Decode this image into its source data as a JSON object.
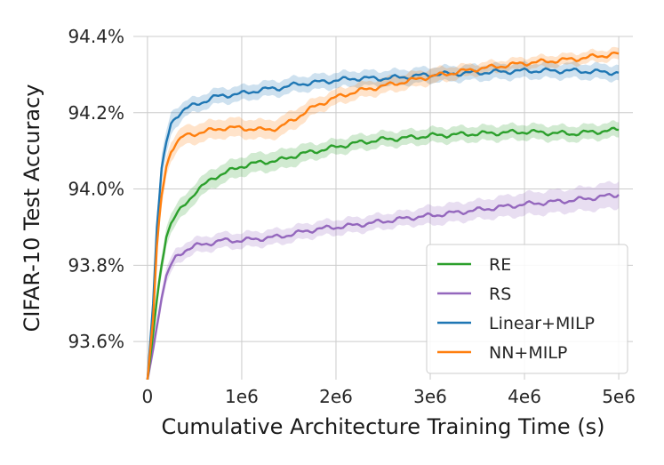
{
  "chart_data": {
    "type": "line",
    "title": "",
    "xlabel": "Cumulative Architecture Training Time (s)",
    "ylabel": "CIFAR-10 Test Accuracy",
    "xlim": [
      -150000,
      5150000
    ],
    "ylim": [
      93.5,
      94.4
    ],
    "xticks": [
      0,
      1000000,
      2000000,
      3000000,
      4000000,
      5000000
    ],
    "xtick_labels": [
      "0",
      "1e6",
      "2e6",
      "3e6",
      "4e6",
      "5e6"
    ],
    "yticks": [
      93.6,
      93.8,
      94.0,
      94.2,
      94.4
    ],
    "ytick_labels": [
      "93.6%",
      "93.8%",
      "94.0%",
      "94.2%",
      "94.4%"
    ],
    "grid": true,
    "legend_position": "lower-right",
    "series": [
      {
        "name": "RE",
        "color": "#2ca02c",
        "x": [
          0,
          60000,
          100000,
          150000,
          200000,
          250000,
          300000,
          400000,
          500000,
          600000,
          700000,
          800000,
          1000000,
          1200000,
          1400000,
          1600000,
          1800000,
          2000000,
          2200000,
          2500000,
          2800000,
          3000000,
          3500000,
          4000000,
          4500000,
          5000000
        ],
        "y": [
          93.5,
          93.62,
          93.71,
          93.8,
          93.88,
          93.91,
          93.93,
          93.96,
          93.99,
          94.01,
          94.03,
          94.04,
          94.06,
          94.07,
          94.075,
          94.09,
          94.1,
          94.11,
          94.12,
          94.13,
          94.135,
          94.14,
          94.145,
          94.15,
          94.145,
          94.155
        ],
        "band": [
          0.025,
          0.025,
          0.025,
          0.025,
          0.025,
          0.025,
          0.025,
          0.025,
          0.025,
          0.025,
          0.025,
          0.025,
          0.025,
          0.025,
          0.025,
          0.025,
          0.02,
          0.02,
          0.02,
          0.02,
          0.02,
          0.02,
          0.02,
          0.02,
          0.02,
          0.02
        ]
      },
      {
        "name": "RS",
        "color": "#9467bd",
        "x": [
          0,
          60000,
          100000,
          150000,
          200000,
          250000,
          300000,
          400000,
          500000,
          600000,
          700000,
          800000,
          1000000,
          1200000,
          1400000,
          1600000,
          1800000,
          2000000,
          2200000,
          2500000,
          2800000,
          3000000,
          3500000,
          4000000,
          4500000,
          5000000
        ],
        "y": [
          93.5,
          93.58,
          93.64,
          93.72,
          93.77,
          93.8,
          93.82,
          93.84,
          93.85,
          93.855,
          93.86,
          93.865,
          93.865,
          93.87,
          93.875,
          93.885,
          93.895,
          93.9,
          93.905,
          93.915,
          93.925,
          93.93,
          93.945,
          93.96,
          93.97,
          93.985
        ],
        "band": [
          0.02,
          0.02,
          0.02,
          0.02,
          0.02,
          0.02,
          0.02,
          0.02,
          0.02,
          0.02,
          0.02,
          0.02,
          0.02,
          0.02,
          0.02,
          0.02,
          0.02,
          0.02,
          0.02,
          0.02,
          0.02,
          0.025,
          0.025,
          0.03,
          0.03,
          0.035
        ]
      },
      {
        "name": "Linear+MILP",
        "color": "#1f77b4",
        "x": [
          0,
          60000,
          100000,
          150000,
          200000,
          250000,
          300000,
          400000,
          500000,
          600000,
          700000,
          800000,
          1000000,
          1200000,
          1400000,
          1600000,
          1800000,
          2000000,
          2200000,
          2500000,
          2800000,
          3000000,
          3500000,
          4000000,
          4500000,
          5000000
        ],
        "y": [
          93.5,
          93.7,
          93.9,
          94.05,
          94.12,
          94.17,
          94.19,
          94.21,
          94.22,
          94.23,
          94.24,
          94.245,
          94.25,
          94.26,
          94.265,
          94.275,
          94.28,
          94.285,
          94.29,
          94.29,
          94.295,
          94.3,
          94.305,
          94.31,
          94.31,
          94.305
        ],
        "band": [
          0.035,
          0.035,
          0.035,
          0.035,
          0.03,
          0.03,
          0.025,
          0.02,
          0.02,
          0.02,
          0.02,
          0.02,
          0.02,
          0.02,
          0.02,
          0.02,
          0.02,
          0.02,
          0.02,
          0.02,
          0.02,
          0.02,
          0.02,
          0.02,
          0.02,
          0.02
        ]
      },
      {
        "name": "NN+MILP",
        "color": "#ff7f0e",
        "x": [
          0,
          60000,
          100000,
          150000,
          200000,
          250000,
          300000,
          400000,
          500000,
          600000,
          700000,
          800000,
          1000000,
          1200000,
          1400000,
          1600000,
          1800000,
          2000000,
          2200000,
          2500000,
          2800000,
          3000000,
          3500000,
          4000000,
          4500000,
          5000000
        ],
        "y": [
          93.5,
          93.66,
          93.85,
          93.98,
          94.06,
          94.1,
          94.12,
          94.14,
          94.145,
          94.15,
          94.155,
          94.16,
          94.16,
          94.155,
          94.16,
          94.19,
          94.22,
          94.24,
          94.255,
          94.27,
          94.285,
          94.295,
          94.315,
          94.33,
          94.34,
          94.355
        ],
        "band": [
          0.03,
          0.03,
          0.03,
          0.03,
          0.025,
          0.025,
          0.025,
          0.025,
          0.025,
          0.025,
          0.025,
          0.025,
          0.025,
          0.025,
          0.025,
          0.025,
          0.02,
          0.02,
          0.02,
          0.02,
          0.02,
          0.02,
          0.015,
          0.015,
          0.015,
          0.015
        ]
      }
    ]
  }
}
